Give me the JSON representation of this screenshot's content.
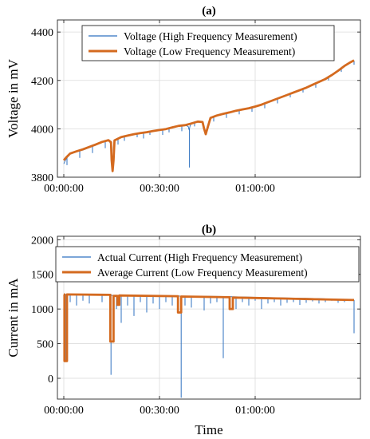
{
  "colors": {
    "high_frequency": "#2f72c0",
    "low_frequency": "#d46a1f",
    "grid": "#dcdcdc",
    "axis": "#262626"
  },
  "chart_data": [
    {
      "type": "line",
      "title": "(a)",
      "xlabel": "",
      "ylabel": "Voltage in mV",
      "xlim_minutes": [
        -2,
        93
      ],
      "ylim": [
        3800,
        4450
      ],
      "xticks": [
        {
          "minutes": 0,
          "label": "00:00:00"
        },
        {
          "minutes": 30,
          "label": "00:30:00"
        },
        {
          "minutes": 60,
          "label": "01:00:00"
        }
      ],
      "yticks": [
        3800,
        4000,
        4200,
        4400
      ],
      "grid": true,
      "legend_position": "top-right",
      "series": [
        {
          "name": "Voltage (High Frequency Measurement)",
          "style": "thin",
          "points": [
            [
              0,
              3855
            ],
            [
              0.5,
              3870
            ],
            [
              1,
              3880
            ],
            [
              2,
              3895
            ],
            [
              4,
              3905
            ],
            [
              6,
              3912
            ],
            [
              8,
              3922
            ],
            [
              10,
              3932
            ],
            [
              12,
              3945
            ],
            [
              14,
              3955
            ],
            [
              15,
              3930
            ],
            [
              15.3,
              3830
            ],
            [
              15.6,
              3930
            ],
            [
              16,
              3955
            ],
            [
              18,
              3965
            ],
            [
              20,
              3972
            ],
            [
              22,
              3978
            ],
            [
              24,
              3982
            ],
            [
              26,
              3986
            ],
            [
              28,
              3990
            ],
            [
              30,
              3994
            ],
            [
              32,
              3998
            ],
            [
              34,
              4005
            ],
            [
              35,
              4010
            ],
            [
              36,
              4012
            ],
            [
              38,
              4015
            ],
            [
              39,
              4010
            ],
            [
              39.3,
              3995
            ],
            [
              39.6,
              4012
            ],
            [
              40,
              4022
            ],
            [
              42,
              4030
            ],
            [
              43.5,
              4030
            ],
            [
              44,
              4000
            ],
            [
              44.5,
              3975
            ],
            [
              45,
              4010
            ],
            [
              46,
              4045
            ],
            [
              48,
              4055
            ],
            [
              50,
              4062
            ],
            [
              52,
              4068
            ],
            [
              54,
              4075
            ],
            [
              56,
              4080
            ],
            [
              58,
              4085
            ],
            [
              60,
              4092
            ],
            [
              62,
              4100
            ],
            [
              64,
              4110
            ],
            [
              66,
              4120
            ],
            [
              68,
              4130
            ],
            [
              70,
              4140
            ],
            [
              72,
              4150
            ],
            [
              74,
              4160
            ],
            [
              76,
              4170
            ],
            [
              78,
              4180
            ],
            [
              80,
              4192
            ],
            [
              82,
              4205
            ],
            [
              84,
              4220
            ],
            [
              86,
              4240
            ],
            [
              88,
              4260
            ],
            [
              90,
              4275
            ],
            [
              91,
              4282
            ]
          ],
          "spikes": [
            [
              1,
              3850
            ],
            [
              5,
              3880
            ],
            [
              9,
              3900
            ],
            [
              13,
              3920
            ],
            [
              17,
              3935
            ],
            [
              19,
              3950
            ],
            [
              23,
              3965
            ],
            [
              25,
              3960
            ],
            [
              27,
              3975
            ],
            [
              31,
              3975
            ],
            [
              33,
              3985
            ],
            [
              37,
              3990
            ],
            [
              39.4,
              3840
            ],
            [
              41,
              4010
            ],
            [
              47,
              4030
            ],
            [
              51,
              4045
            ],
            [
              55,
              4060
            ],
            [
              59,
              4070
            ],
            [
              63,
              4085
            ],
            [
              67,
              4105
            ],
            [
              71,
              4130
            ],
            [
              75,
              4150
            ],
            [
              79,
              4170
            ],
            [
              83,
              4200
            ],
            [
              87,
              4235
            ],
            [
              91,
              4265
            ]
          ]
        },
        {
          "name": "Voltage (Low Frequency Measurement)",
          "style": "thick",
          "points": [
            [
              0,
              3870
            ],
            [
              1,
              3885
            ],
            [
              2,
              3898
            ],
            [
              4,
              3907
            ],
            [
              6,
              3915
            ],
            [
              8,
              3925
            ],
            [
              10,
              3935
            ],
            [
              12,
              3946
            ],
            [
              14,
              3953
            ],
            [
              14.8,
              3945
            ],
            [
              15,
              3870
            ],
            [
              15.3,
              3825
            ],
            [
              15.6,
              3870
            ],
            [
              15.9,
              3952
            ],
            [
              18,
              3966
            ],
            [
              20,
              3972
            ],
            [
              22,
              3978
            ],
            [
              24,
              3982
            ],
            [
              26,
              3986
            ],
            [
              28,
              3991
            ],
            [
              30,
              3995
            ],
            [
              32,
              3999
            ],
            [
              34,
              4006
            ],
            [
              36,
              4012
            ],
            [
              38,
              4015
            ],
            [
              40,
              4022
            ],
            [
              42,
              4030
            ],
            [
              43.5,
              4028
            ],
            [
              44,
              4000
            ],
            [
              44.5,
              3978
            ],
            [
              45.2,
              4010
            ],
            [
              46,
              4045
            ],
            [
              48,
              4055
            ],
            [
              50,
              4062
            ],
            [
              52,
              4068
            ],
            [
              54,
              4075
            ],
            [
              56,
              4080
            ],
            [
              58,
              4085
            ],
            [
              60,
              4092
            ],
            [
              62,
              4100
            ],
            [
              64,
              4110
            ],
            [
              66,
              4120
            ],
            [
              68,
              4130
            ],
            [
              70,
              4140
            ],
            [
              72,
              4150
            ],
            [
              74,
              4160
            ],
            [
              76,
              4170
            ],
            [
              78,
              4182
            ],
            [
              80,
              4194
            ],
            [
              82,
              4206
            ],
            [
              84,
              4222
            ],
            [
              86,
              4240
            ],
            [
              88,
              4260
            ],
            [
              90,
              4276
            ],
            [
              91,
              4283
            ]
          ]
        }
      ]
    },
    {
      "type": "line",
      "title": "(b)",
      "xlabel": "Time",
      "ylabel": "Current in mA",
      "xlim_minutes": [
        -2,
        93
      ],
      "ylim": [
        -300,
        2050
      ],
      "xticks": [
        {
          "minutes": 0,
          "label": "00:00:00"
        },
        {
          "minutes": 30,
          "label": "00:30:00"
        },
        {
          "minutes": 60,
          "label": "01:00:00"
        }
      ],
      "yticks": [
        0,
        500,
        1000,
        1500,
        2000
      ],
      "grid": true,
      "legend_position": "top-right",
      "series": [
        {
          "name": "Actual Current (High Frequency Measurement)",
          "style": "thin",
          "points": [
            [
              0,
              1210
            ],
            [
              10,
              1200
            ],
            [
              20,
              1195
            ],
            [
              30,
              1190
            ],
            [
              40,
              1185
            ],
            [
              50,
              1180
            ],
            [
              60,
              1170
            ],
            [
              70,
              1160
            ],
            [
              80,
              1150
            ],
            [
              91,
              1130
            ]
          ],
          "spikes": [
            [
              0.5,
              250
            ],
            [
              2,
              1100
            ],
            [
              4,
              1050
            ],
            [
              6,
              1120
            ],
            [
              8,
              1080
            ],
            [
              12,
              1100
            ],
            [
              14.8,
              50
            ],
            [
              15.6,
              520
            ],
            [
              16.5,
              1000
            ],
            [
              18,
              800
            ],
            [
              20,
              1050
            ],
            [
              22,
              900
            ],
            [
              24,
              1100
            ],
            [
              26,
              950
            ],
            [
              28,
              1080
            ],
            [
              30,
              1000
            ],
            [
              32,
              1100
            ],
            [
              34,
              1050
            ],
            [
              35.8,
              1000
            ],
            [
              36.8,
              -280
            ],
            [
              38,
              1050
            ],
            [
              40,
              1020
            ],
            [
              44,
              980
            ],
            [
              46,
              1080
            ],
            [
              48,
              1100
            ],
            [
              50,
              290
            ],
            [
              52,
              1050
            ],
            [
              54,
              1000
            ],
            [
              56,
              1100
            ],
            [
              58,
              1050
            ],
            [
              60,
              1120
            ],
            [
              62,
              1000
            ],
            [
              64,
              1080
            ],
            [
              66,
              1100
            ],
            [
              68,
              1050
            ],
            [
              70,
              1090
            ],
            [
              72,
              1100
            ],
            [
              74,
              1060
            ],
            [
              76,
              1090
            ],
            [
              78,
              1110
            ],
            [
              80,
              1080
            ],
            [
              82,
              1100
            ],
            [
              84,
              1120
            ],
            [
              86,
              1090
            ],
            [
              88,
              1100
            ],
            [
              91,
              650
            ]
          ]
        },
        {
          "name": "Average Current (Low Frequency Measurement)",
          "style": "thick",
          "points": [
            [
              0,
              1210
            ],
            [
              0.2,
              1210
            ],
            [
              0.2,
              250
            ],
            [
              1,
              250
            ],
            [
              1,
              1210
            ],
            [
              14.6,
              1205
            ],
            [
              14.6,
              530
            ],
            [
              15.6,
              530
            ],
            [
              15.6,
              1190
            ],
            [
              16.8,
              1190
            ],
            [
              16.8,
              1060
            ],
            [
              17.4,
              1060
            ],
            [
              17.4,
              1195
            ],
            [
              35.8,
              1185
            ],
            [
              35.8,
              950
            ],
            [
              36.8,
              950
            ],
            [
              36.8,
              1180
            ],
            [
              52,
              1170
            ],
            [
              52,
              1000
            ],
            [
              53,
              1000
            ],
            [
              53,
              1165
            ],
            [
              60,
              1160
            ],
            [
              70,
              1150
            ],
            [
              80,
              1140
            ],
            [
              91,
              1130
            ]
          ]
        }
      ]
    }
  ]
}
